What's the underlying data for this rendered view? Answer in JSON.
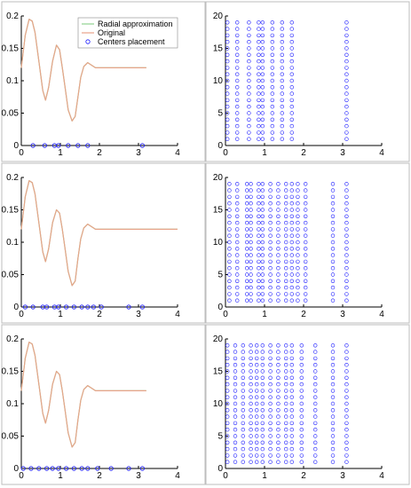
{
  "legend": {
    "radial": "Radial approximation",
    "original": "Original",
    "centers": "Centers placement"
  },
  "colors": {
    "radial": "#8fd18f",
    "original": "#e8a48a",
    "centers": "#1a1aff",
    "axis": "#000000",
    "frame": "#bdbdbd"
  },
  "chart_data": [
    {
      "type": "line",
      "row": 0,
      "col": 0,
      "xlim": [
        0,
        4
      ],
      "ylim": [
        0,
        0.2
      ],
      "xticks": [
        "0",
        "1",
        "2",
        "3",
        "4"
      ],
      "yticks": [
        "0",
        "0.05",
        "0.1",
        "0.15",
        "0.2"
      ],
      "legend": true,
      "legend_position": "top-right",
      "series": [
        {
          "name": "Radial approximation",
          "x": [
            0,
            0.1,
            0.2,
            0.28,
            0.35,
            0.45,
            0.55,
            0.62,
            0.7,
            0.8,
            0.9,
            0.98,
            1.05,
            1.12,
            1.2,
            1.3,
            1.38,
            1.45,
            1.52,
            1.6,
            1.7,
            1.8,
            1.9,
            2.0,
            2.2,
            2.5,
            3.0,
            3.2
          ],
          "y": [
            0.12,
            0.17,
            0.195,
            0.192,
            0.175,
            0.13,
            0.085,
            0.07,
            0.09,
            0.13,
            0.155,
            0.148,
            0.12,
            0.09,
            0.055,
            0.038,
            0.045,
            0.075,
            0.105,
            0.122,
            0.128,
            0.124,
            0.12,
            0.12,
            0.12,
            0.12,
            0.12,
            0.12
          ]
        },
        {
          "name": "Original",
          "x": [
            0,
            0.1,
            0.2,
            0.28,
            0.35,
            0.45,
            0.55,
            0.62,
            0.7,
            0.8,
            0.9,
            0.98,
            1.05,
            1.12,
            1.2,
            1.3,
            1.38,
            1.45,
            1.52,
            1.6,
            1.7,
            1.8,
            1.9,
            2.0,
            2.2,
            2.5,
            3.0,
            3.2
          ],
          "y": [
            0.12,
            0.17,
            0.195,
            0.192,
            0.175,
            0.13,
            0.085,
            0.07,
            0.09,
            0.13,
            0.155,
            0.148,
            0.12,
            0.09,
            0.055,
            0.038,
            0.045,
            0.075,
            0.105,
            0.122,
            0.128,
            0.124,
            0.12,
            0.12,
            0.12,
            0.12,
            0.12,
            0.12
          ]
        },
        {
          "name": "Centers placement",
          "style": "markers",
          "x": [
            0.3,
            0.6,
            0.85,
            0.95,
            1.2,
            1.45,
            1.7,
            3.1
          ],
          "y": [
            0,
            0,
            0,
            0,
            0,
            0,
            0,
            0
          ]
        }
      ]
    },
    {
      "type": "scatter",
      "row": 0,
      "col": 1,
      "xlim": [
        0,
        4
      ],
      "ylim": [
        0,
        20
      ],
      "xticks": [
        "0",
        "1",
        "2",
        "3",
        "4"
      ],
      "yticks": [
        "0",
        "5",
        "10",
        "15",
        "20"
      ],
      "columns_x": [
        0.05,
        0.3,
        0.6,
        0.85,
        0.95,
        1.2,
        1.45,
        1.7,
        3.1
      ],
      "y_values": [
        1,
        2,
        3,
        4,
        5,
        6,
        7,
        8,
        9,
        10,
        11,
        12,
        13,
        14,
        15,
        16,
        17,
        18,
        19
      ]
    },
    {
      "type": "line",
      "row": 1,
      "col": 0,
      "xlim": [
        0,
        4
      ],
      "ylim": [
        0,
        0.2
      ],
      "xticks": [
        "0",
        "1",
        "2",
        "3",
        "4"
      ],
      "yticks": [
        "0",
        "0.05",
        "0.1",
        "0.15",
        "0.2"
      ],
      "series": [
        {
          "name": "Radial approximation",
          "x": [
            0,
            0.1,
            0.2,
            0.28,
            0.35,
            0.45,
            0.55,
            0.62,
            0.7,
            0.8,
            0.9,
            0.98,
            1.05,
            1.12,
            1.2,
            1.3,
            1.38,
            1.45,
            1.52,
            1.6,
            1.7,
            1.8,
            1.9,
            2.0,
            2.2,
            2.5,
            3.0,
            4.0
          ],
          "y": [
            0.12,
            0.17,
            0.195,
            0.192,
            0.175,
            0.13,
            0.085,
            0.07,
            0.09,
            0.13,
            0.15,
            0.145,
            0.12,
            0.09,
            0.055,
            0.033,
            0.04,
            0.075,
            0.105,
            0.122,
            0.128,
            0.124,
            0.12,
            0.12,
            0.12,
            0.12,
            0.12,
            0.12
          ]
        },
        {
          "name": "Original",
          "x": [
            0,
            0.1,
            0.2,
            0.28,
            0.35,
            0.45,
            0.55,
            0.62,
            0.7,
            0.8,
            0.9,
            0.98,
            1.05,
            1.12,
            1.2,
            1.3,
            1.38,
            1.45,
            1.52,
            1.6,
            1.7,
            1.8,
            1.9,
            2.0,
            2.2,
            2.5,
            3.0,
            4.0
          ],
          "y": [
            0.12,
            0.17,
            0.195,
            0.192,
            0.175,
            0.13,
            0.085,
            0.07,
            0.09,
            0.13,
            0.15,
            0.145,
            0.12,
            0.09,
            0.055,
            0.033,
            0.04,
            0.075,
            0.105,
            0.122,
            0.128,
            0.124,
            0.12,
            0.12,
            0.12,
            0.12,
            0.12,
            0.12
          ]
        },
        {
          "name": "Centers placement",
          "style": "markers",
          "x": [
            0.1,
            0.3,
            0.55,
            0.65,
            0.85,
            0.95,
            1.15,
            1.35,
            1.55,
            1.7,
            1.85,
            2.05,
            2.75,
            3.1
          ],
          "y": [
            0,
            0,
            0,
            0,
            0,
            0,
            0,
            0,
            0,
            0,
            0,
            0,
            0,
            0
          ]
        }
      ]
    },
    {
      "type": "scatter",
      "row": 1,
      "col": 1,
      "xlim": [
        0,
        4
      ],
      "ylim": [
        0,
        20
      ],
      "xticks": [
        "0",
        "1",
        "2",
        "3",
        "4"
      ],
      "yticks": [
        "0",
        "5",
        "10",
        "15",
        "20"
      ],
      "columns_x": [
        0.1,
        0.3,
        0.55,
        0.65,
        0.85,
        0.95,
        1.15,
        1.35,
        1.55,
        1.7,
        1.85,
        2.05,
        2.75,
        3.1
      ],
      "y_values": [
        1,
        2,
        3,
        4,
        5,
        6,
        7,
        8,
        9,
        10,
        11,
        12,
        13,
        14,
        15,
        16,
        17,
        18,
        19
      ]
    },
    {
      "type": "line",
      "row": 2,
      "col": 0,
      "xlim": [
        0,
        4
      ],
      "ylim": [
        0,
        0.2
      ],
      "xticks": [
        "0",
        "1",
        "2",
        "3",
        "4"
      ],
      "yticks": [
        "0",
        "0.05",
        "0.1",
        "0.15",
        "0.2"
      ],
      "series": [
        {
          "name": "Radial approximation",
          "x": [
            0,
            0.1,
            0.2,
            0.28,
            0.35,
            0.45,
            0.55,
            0.62,
            0.7,
            0.8,
            0.9,
            0.98,
            1.05,
            1.12,
            1.2,
            1.3,
            1.38,
            1.45,
            1.52,
            1.6,
            1.7,
            1.8,
            1.9,
            2.0,
            2.2,
            2.5,
            3.0,
            3.2
          ],
          "y": [
            0.12,
            0.17,
            0.195,
            0.192,
            0.175,
            0.13,
            0.085,
            0.07,
            0.09,
            0.13,
            0.15,
            0.145,
            0.12,
            0.09,
            0.055,
            0.033,
            0.04,
            0.075,
            0.105,
            0.122,
            0.128,
            0.124,
            0.12,
            0.12,
            0.12,
            0.12,
            0.12,
            0.12
          ]
        },
        {
          "name": "Original",
          "x": [
            0,
            0.1,
            0.2,
            0.28,
            0.35,
            0.45,
            0.55,
            0.62,
            0.7,
            0.8,
            0.9,
            0.98,
            1.05,
            1.12,
            1.2,
            1.3,
            1.38,
            1.45,
            1.52,
            1.6,
            1.7,
            1.8,
            1.9,
            2.0,
            2.2,
            2.5,
            3.0,
            3.2
          ],
          "y": [
            0.12,
            0.17,
            0.195,
            0.192,
            0.175,
            0.13,
            0.085,
            0.07,
            0.09,
            0.13,
            0.15,
            0.145,
            0.12,
            0.09,
            0.055,
            0.033,
            0.04,
            0.075,
            0.105,
            0.122,
            0.128,
            0.124,
            0.12,
            0.12,
            0.12,
            0.12,
            0.12,
            0.12
          ]
        },
        {
          "name": "Centers placement",
          "style": "markers",
          "x": [
            0.05,
            0.25,
            0.45,
            0.65,
            0.8,
            0.95,
            1.15,
            1.35,
            1.55,
            1.7,
            1.95,
            2.3,
            2.75,
            3.1
          ],
          "y": [
            0,
            0,
            0,
            0,
            0,
            0,
            0,
            0,
            0,
            0,
            0,
            0,
            0,
            0
          ]
        }
      ]
    },
    {
      "type": "scatter",
      "row": 2,
      "col": 1,
      "xlim": [
        0,
        4
      ],
      "ylim": [
        0,
        20
      ],
      "xticks": [
        "0",
        "1",
        "2",
        "3",
        "4"
      ],
      "yticks": [
        "0",
        "5",
        "10",
        "15",
        "20"
      ],
      "columns_x": [
        0.05,
        0.25,
        0.45,
        0.65,
        0.8,
        0.95,
        1.15,
        1.35,
        1.55,
        1.7,
        1.95,
        2.3,
        2.75,
        3.1
      ],
      "y_values": [
        1,
        2,
        3,
        4,
        5,
        6,
        7,
        8,
        9,
        10,
        11,
        12,
        13,
        14,
        15,
        16,
        17,
        18,
        19
      ]
    }
  ]
}
